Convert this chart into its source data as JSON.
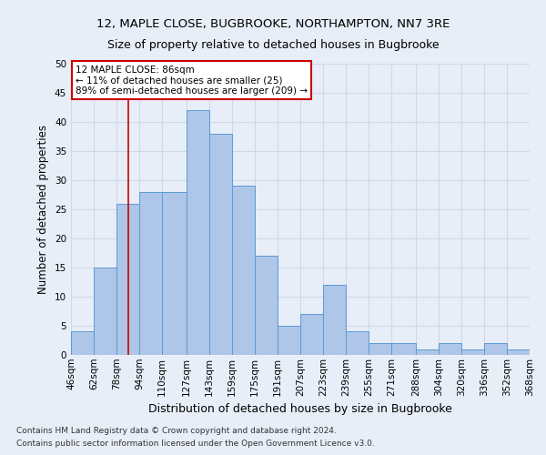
{
  "title1": "12, MAPLE CLOSE, BUGBROOKE, NORTHAMPTON, NN7 3RE",
  "title2": "Size of property relative to detached houses in Bugbrooke",
  "xlabel": "Distribution of detached houses by size in Bugbrooke",
  "ylabel": "Number of detached properties",
  "bin_labels": [
    "46sqm",
    "62sqm",
    "78sqm",
    "94sqm",
    "110sqm",
    "127sqm",
    "143sqm",
    "159sqm",
    "175sqm",
    "191sqm",
    "207sqm",
    "223sqm",
    "239sqm",
    "255sqm",
    "271sqm",
    "288sqm",
    "304sqm",
    "320sqm",
    "336sqm",
    "352sqm",
    "368sqm"
  ],
  "bin_edges": [
    46,
    62,
    78,
    94,
    110,
    127,
    143,
    159,
    175,
    191,
    207,
    223,
    239,
    255,
    271,
    288,
    304,
    320,
    336,
    352,
    368
  ],
  "bar_heights": [
    4,
    15,
    26,
    28,
    28,
    42,
    38,
    29,
    17,
    5,
    7,
    12,
    4,
    2,
    2,
    1,
    2,
    1,
    2,
    1,
    0
  ],
  "bar_color": "#aec6e8",
  "bar_edge_color": "#5b9bd5",
  "grid_color": "#d0d8e8",
  "background_color": "#e8eef8",
  "property_size": 86,
  "red_line_color": "#cc0000",
  "annotation_text": "12 MAPLE CLOSE: 86sqm\n← 11% of detached houses are smaller (25)\n89% of semi-detached houses are larger (209) →",
  "annotation_box_color": "#ffffff",
  "annotation_border_color": "#cc0000",
  "footnote1": "Contains HM Land Registry data © Crown copyright and database right 2024.",
  "footnote2": "Contains public sector information licensed under the Open Government Licence v3.0.",
  "ylim": [
    0,
    50
  ],
  "yticks": [
    0,
    5,
    10,
    15,
    20,
    25,
    30,
    35,
    40,
    45,
    50
  ],
  "title1_fontsize": 9.5,
  "title2_fontsize": 9.0,
  "xlabel_fontsize": 9.0,
  "ylabel_fontsize": 8.5,
  "tick_fontsize": 7.5,
  "annot_fontsize": 7.5,
  "footnote_fontsize": 6.5
}
